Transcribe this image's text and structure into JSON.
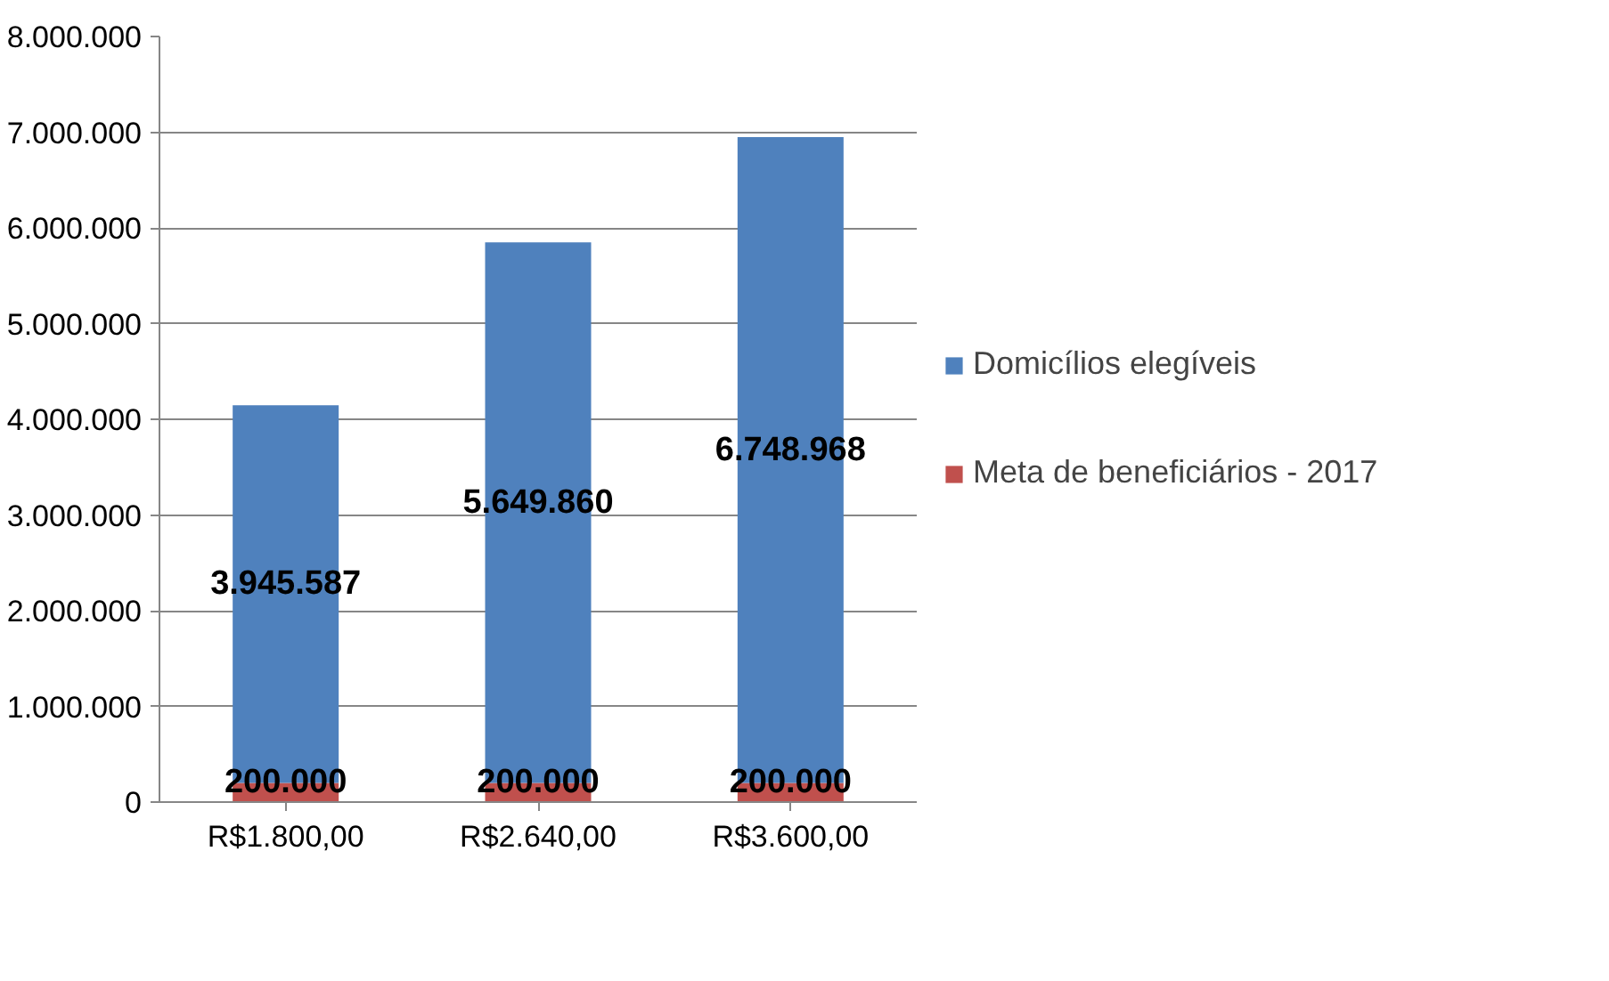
{
  "chart_data": {
    "type": "bar",
    "stacked": true,
    "categories": [
      "R$1.800,00",
      "R$2.640,00",
      "R$3.600,00"
    ],
    "series": [
      {
        "name": "Meta de beneficiários - 2017",
        "color": "#c0504d",
        "values": [
          200000,
          200000,
          200000
        ],
        "value_labels": [
          "200.000",
          "200.000",
          "200.000"
        ]
      },
      {
        "name": "Domicílios elegíveis",
        "color": "#4f81bd",
        "values": [
          3945587,
          5649860,
          6748968
        ],
        "value_labels": [
          "3.945.587",
          "5.649.860",
          "6.748.968"
        ]
      }
    ],
    "ylim": [
      0,
      8000000
    ],
    "yticks": [
      0,
      {
        "value": 1000000,
        "label": "1.000.000"
      },
      {
        "value": 2000000,
        "label": "2.000.000"
      },
      {
        "value": 3000000,
        "label": "3.000.000"
      },
      {
        "value": 4000000,
        "label": "4.000.000"
      },
      {
        "value": 5000000,
        "label": "5.000.000"
      },
      {
        "value": 6000000,
        "label": "6.000.000"
      },
      {
        "value": 7000000,
        "label": "7.000.000"
      },
      {
        "value": 8000000,
        "label": "8.000.000"
      }
    ],
    "grid": "y",
    "legend": "right"
  }
}
